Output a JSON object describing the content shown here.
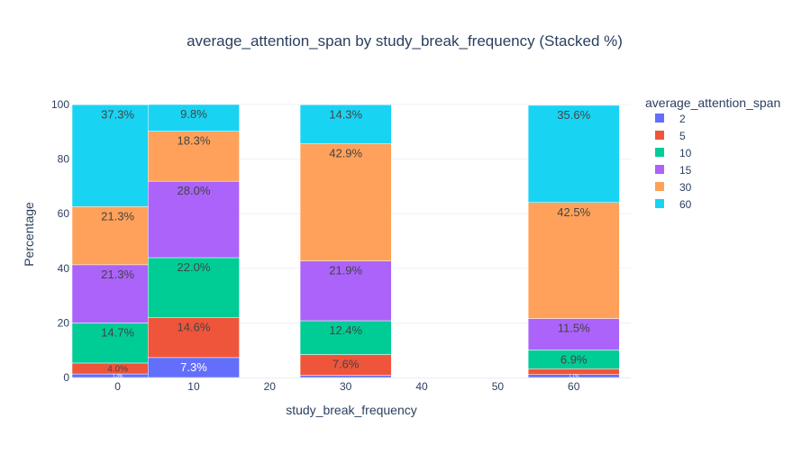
{
  "chart_data": {
    "type": "bar",
    "stacked": "percent",
    "title": "average_attention_span by study_break_frequency (Stacked %)",
    "xlabel": "study_break_frequency",
    "ylabel": "Percentage",
    "x": [
      0,
      10,
      20,
      30,
      60
    ],
    "xticks": [
      "0",
      "10",
      "20",
      "30",
      "40",
      "50",
      "60"
    ],
    "yticks": [
      "0",
      "20",
      "40",
      "60",
      "80",
      "100"
    ],
    "ylim": [
      0,
      100
    ],
    "xlim": [
      -6,
      67.5
    ],
    "bar_width": 12,
    "legend_title": "average_attention_span",
    "legend_position": "right",
    "series": [
      {
        "name": "2",
        "color": "#636efa",
        "values": [
          1.3,
          7.3,
          0.0,
          0.8,
          1.1
        ],
        "labels": [
          "1.3%",
          "7.3%",
          "",
          "",
          "1.1%"
        ]
      },
      {
        "name": "5",
        "color": "#ef553b",
        "values": [
          4.0,
          14.6,
          0.0,
          7.6,
          2.1
        ],
        "labels": [
          "4.0%",
          "14.6%",
          "",
          "7.6%",
          ""
        ]
      },
      {
        "name": "10",
        "color": "#00cc96",
        "values": [
          14.7,
          22.0,
          0.0,
          12.4,
          6.9
        ],
        "labels": [
          "14.7%",
          "22.0%",
          "",
          "12.4%",
          "6.9%"
        ]
      },
      {
        "name": "15",
        "color": "#ab63fa",
        "values": [
          21.3,
          28.0,
          0.0,
          21.9,
          11.5
        ],
        "labels": [
          "21.3%",
          "28.0%",
          "",
          "21.9%",
          "11.5%"
        ]
      },
      {
        "name": "30",
        "color": "#ffa15a",
        "values": [
          21.3,
          18.3,
          0.0,
          42.9,
          42.5
        ],
        "labels": [
          "21.3%",
          "18.3%",
          "",
          "42.9%",
          "42.5%"
        ]
      },
      {
        "name": "60",
        "color": "#19d3f3",
        "values": [
          37.3,
          9.8,
          0.0,
          14.3,
          35.6
        ],
        "labels": [
          "37.3%",
          "9.8%",
          "",
          "14.3%",
          "35.6%"
        ]
      }
    ],
    "gridlines": true
  }
}
